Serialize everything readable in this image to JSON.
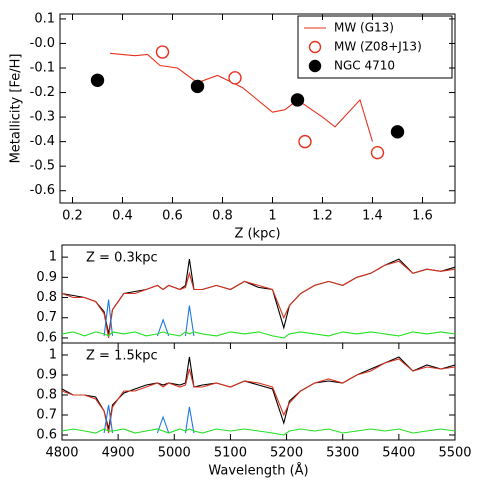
{
  "chart_data": [
    {
      "type": "scatter",
      "xlabel": "Z (kpc)",
      "ylabel": "Metallicity [Fe/H]",
      "xlim": [
        0.15,
        1.73
      ],
      "xticks": [
        0.2,
        0.4,
        0.6,
        0.8,
        1.0,
        1.2,
        1.4,
        1.6
      ],
      "ylim": [
        -0.65,
        0.12
      ],
      "yticks": [
        0.1,
        {
          "value": 0,
          "label": "-0.0"
        },
        -0.1,
        -0.2,
        -0.3,
        -0.4,
        -0.5,
        -0.6
      ],
      "legend": "upper right",
      "series": [
        {
          "name": "MW (G13)",
          "color": "#e8321e",
          "style": "line",
          "x": [
            0.35,
            0.45,
            0.5,
            0.55,
            0.62,
            0.7,
            0.78,
            0.88,
            1.0,
            1.05,
            1.1,
            1.2,
            1.25,
            1.35,
            1.4
          ],
          "values": [
            -0.04,
            -0.05,
            -0.045,
            -0.09,
            -0.1,
            -0.16,
            -0.13,
            -0.18,
            -0.28,
            -0.27,
            -0.23,
            -0.3,
            -0.34,
            -0.23,
            -0.4
          ]
        },
        {
          "name": "MW (Z08+J13)",
          "color": "#e8321e",
          "style": "open",
          "x": [
            0.56,
            0.85,
            1.13,
            1.42
          ],
          "values": [
            -0.035,
            -0.14,
            -0.4,
            -0.445
          ]
        },
        {
          "name": "NGC 4710",
          "color": "#000000",
          "style": "filled",
          "x": [
            0.3,
            0.7,
            1.1,
            1.5
          ],
          "values": [
            -0.15,
            -0.175,
            -0.23,
            -0.36
          ]
        }
      ]
    },
    {
      "type": "line",
      "annotation": "Z = 0.3kpc",
      "xlim": [
        4800,
        5500
      ],
      "ylim": [
        0.575,
        1.06
      ],
      "yticks": [
        0.6,
        0.7,
        0.8,
        0.9,
        1.0
      ],
      "x": [
        4800,
        4820,
        4840,
        4860,
        4875,
        4883,
        4890,
        4910,
        4930,
        4950,
        4970,
        4980,
        4990,
        5010,
        5020,
        5027,
        5035,
        5050,
        5075,
        5100,
        5125,
        5150,
        5175,
        5195,
        5205,
        5225,
        5250,
        5275,
        5300,
        5325,
        5350,
        5375,
        5400,
        5425,
        5450,
        5475,
        5500
      ],
      "series": [
        {
          "color": "#000000",
          "values": [
            0.82,
            0.81,
            0.8,
            0.78,
            0.73,
            0.62,
            0.74,
            0.82,
            0.83,
            0.84,
            0.86,
            0.84,
            0.86,
            0.84,
            0.86,
            0.99,
            0.84,
            0.84,
            0.86,
            0.84,
            0.88,
            0.85,
            0.84,
            0.65,
            0.76,
            0.82,
            0.86,
            0.88,
            0.86,
            0.9,
            0.92,
            0.96,
            0.99,
            0.92,
            0.94,
            0.93,
            0.95
          ]
        },
        {
          "color": "#d8321e",
          "values": [
            0.82,
            0.8,
            0.8,
            0.78,
            0.72,
            0.6,
            0.74,
            0.82,
            0.82,
            0.84,
            0.86,
            0.84,
            0.86,
            0.84,
            0.85,
            0.92,
            0.84,
            0.84,
            0.86,
            0.84,
            0.88,
            0.86,
            0.84,
            0.7,
            0.76,
            0.82,
            0.86,
            0.88,
            0.86,
            0.9,
            0.92,
            0.96,
            0.98,
            0.92,
            0.94,
            0.93,
            0.94
          ]
        },
        {
          "color": "#1e78e0",
          "values": [
            null,
            null,
            null,
            null,
            0.61,
            0.79,
            0.61,
            null,
            null,
            null,
            0.61,
            0.69,
            0.61,
            null,
            0.61,
            0.76,
            0.61,
            null,
            null,
            null,
            null,
            null,
            null,
            null,
            null,
            null,
            null,
            null,
            null,
            null,
            null,
            null,
            null,
            null,
            null,
            null,
            null
          ]
        },
        {
          "color": "#22e022",
          "values": [
            0.62,
            0.63,
            0.61,
            0.63,
            0.62,
            0.61,
            0.63,
            0.62,
            0.63,
            0.61,
            0.62,
            0.63,
            0.62,
            0.61,
            0.63,
            0.62,
            0.63,
            0.62,
            0.61,
            0.63,
            0.62,
            0.63,
            0.61,
            0.6,
            0.62,
            0.63,
            0.62,
            0.61,
            0.63,
            0.62,
            0.63,
            0.62,
            0.61,
            0.63,
            0.62,
            0.63,
            0.62
          ]
        }
      ]
    },
    {
      "type": "line",
      "annotation": "Z = 1.5kpc",
      "xlabel": "Wavelength (Å)",
      "xlim": [
        4800,
        5500
      ],
      "xticks": [
        4800,
        4900,
        5000,
        5100,
        5200,
        5300,
        5400,
        5500
      ],
      "ylim": [
        0.575,
        1.06
      ],
      "yticks": [
        0.6,
        0.7,
        0.8,
        0.9,
        1.0
      ],
      "x": [
        4800,
        4820,
        4840,
        4860,
        4875,
        4883,
        4890,
        4910,
        4930,
        4950,
        4970,
        4980,
        4990,
        5010,
        5020,
        5027,
        5035,
        5050,
        5075,
        5100,
        5125,
        5150,
        5175,
        5195,
        5205,
        5225,
        5250,
        5275,
        5300,
        5325,
        5350,
        5375,
        5400,
        5425,
        5450,
        5475,
        5500
      ],
      "series": [
        {
          "color": "#000000",
          "values": [
            0.83,
            0.8,
            0.8,
            0.79,
            0.72,
            0.63,
            0.75,
            0.81,
            0.83,
            0.85,
            0.86,
            0.85,
            0.86,
            0.85,
            0.86,
            0.99,
            0.84,
            0.85,
            0.86,
            0.84,
            0.87,
            0.85,
            0.83,
            0.66,
            0.77,
            0.82,
            0.86,
            0.87,
            0.86,
            0.9,
            0.93,
            0.96,
            0.99,
            0.92,
            0.95,
            0.93,
            0.95
          ]
        },
        {
          "color": "#d8321e",
          "values": [
            0.82,
            0.8,
            0.8,
            0.78,
            0.72,
            0.61,
            0.74,
            0.82,
            0.82,
            0.84,
            0.86,
            0.84,
            0.86,
            0.84,
            0.85,
            0.93,
            0.84,
            0.84,
            0.86,
            0.84,
            0.87,
            0.86,
            0.84,
            0.7,
            0.76,
            0.82,
            0.86,
            0.88,
            0.86,
            0.9,
            0.92,
            0.96,
            0.98,
            0.92,
            0.94,
            0.93,
            0.94
          ]
        },
        {
          "color": "#1e78e0",
          "values": [
            null,
            null,
            null,
            null,
            0.61,
            0.75,
            0.61,
            null,
            null,
            null,
            0.61,
            0.69,
            0.61,
            null,
            0.61,
            0.74,
            0.61,
            null,
            null,
            null,
            null,
            null,
            null,
            null,
            null,
            null,
            null,
            null,
            null,
            null,
            null,
            null,
            null,
            null,
            null,
            null,
            null
          ]
        },
        {
          "color": "#22e022",
          "values": [
            0.62,
            0.63,
            0.62,
            0.61,
            0.63,
            0.62,
            0.62,
            0.63,
            0.61,
            0.62,
            0.63,
            0.62,
            0.61,
            0.63,
            0.62,
            0.63,
            0.62,
            0.61,
            0.63,
            0.62,
            0.63,
            0.62,
            0.61,
            0.6,
            0.62,
            0.63,
            0.62,
            0.63,
            0.61,
            0.62,
            0.63,
            0.62,
            0.63,
            0.61,
            0.62,
            0.63,
            0.62
          ]
        }
      ]
    }
  ]
}
